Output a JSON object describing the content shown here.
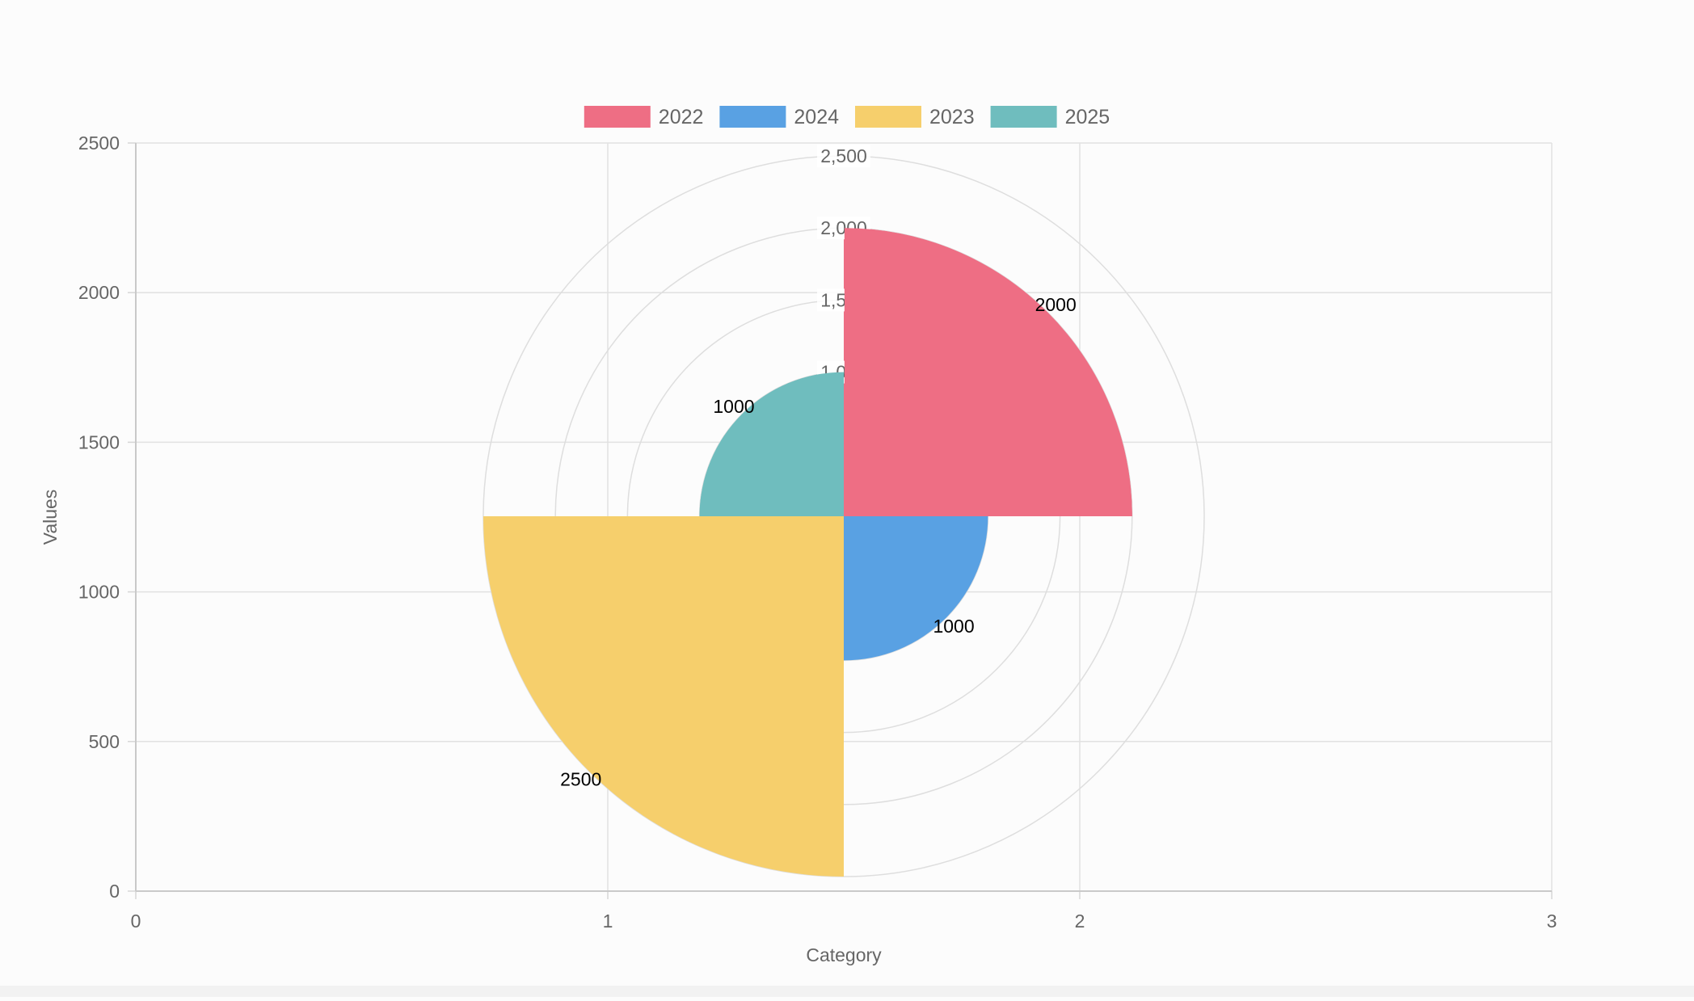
{
  "chart_data": {
    "type": "polarArea",
    "legend_position": "top",
    "xlabel": "Category",
    "ylabel": "Values",
    "xlim": [
      0,
      3
    ],
    "ylim": [
      0,
      2500
    ],
    "x_ticks": [
      "0",
      "1",
      "2",
      "3"
    ],
    "y_ticks": [
      "0",
      "500",
      "1000",
      "1500",
      "2000",
      "2500"
    ],
    "radial_ticks": [
      "1,000",
      "1,500",
      "2,000",
      "2,500"
    ],
    "radial_max": 2500,
    "grid": true,
    "legend": [
      {
        "label": "2022",
        "color": "#ee6e84"
      },
      {
        "label": "2024",
        "color": "#59a1e3"
      },
      {
        "label": "2023",
        "color": "#f6cf6c"
      },
      {
        "label": "2025",
        "color": "#6fbdbe"
      }
    ],
    "slices": [
      {
        "name": "2022",
        "value": 2000,
        "label": "2000",
        "color": "#ee6e84"
      },
      {
        "name": "2024",
        "value": 1000,
        "label": "1000",
        "color": "#59a1e3"
      },
      {
        "name": "2023",
        "value": 2500,
        "label": "2500",
        "color": "#f6cf6c"
      },
      {
        "name": "2025",
        "value": 1000,
        "label": "1000",
        "color": "#6fbdbe"
      }
    ]
  }
}
